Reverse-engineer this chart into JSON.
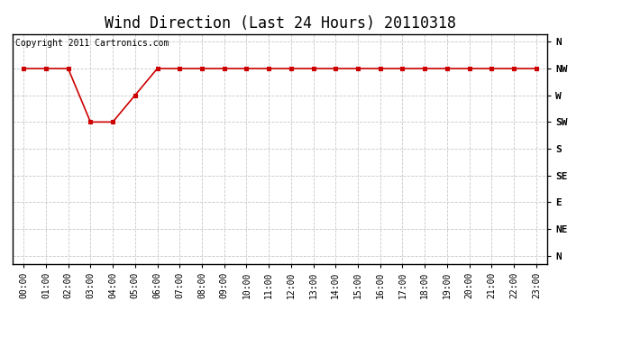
{
  "title": "Wind Direction (Last 24 Hours) 20110318",
  "copyright_text": "Copyright 2011 Cartronics.com",
  "background_color": "#ffffff",
  "plot_bg_color": "#ffffff",
  "grid_color": "#c8c8c8",
  "line_color": "#cc0000",
  "marker_color": "#cc0000",
  "x_labels": [
    "00:00",
    "01:00",
    "02:00",
    "03:00",
    "04:00",
    "05:00",
    "06:00",
    "07:00",
    "08:00",
    "09:00",
    "10:00",
    "11:00",
    "12:00",
    "13:00",
    "14:00",
    "15:00",
    "16:00",
    "17:00",
    "18:00",
    "19:00",
    "20:00",
    "21:00",
    "22:00",
    "23:00"
  ],
  "y_tick_labels": [
    "N",
    "NW",
    "W",
    "SW",
    "S",
    "SE",
    "E",
    "NE",
    "N"
  ],
  "y_tick_positions": [
    8,
    7,
    6,
    5,
    4,
    3,
    2,
    1,
    0
  ],
  "data_hours": [
    0,
    1,
    2,
    3,
    4,
    5,
    6,
    7,
    8,
    9,
    10,
    11,
    12,
    13,
    14,
    15,
    16,
    17,
    18,
    19,
    20,
    21,
    22,
    23
  ],
  "data_values": [
    7,
    7,
    7,
    5,
    5,
    6,
    7,
    7,
    7,
    7,
    7,
    7,
    7,
    7,
    7,
    7,
    7,
    7,
    7,
    7,
    7,
    7,
    7,
    7
  ],
  "title_fontsize": 12,
  "copyright_fontsize": 7,
  "tick_fontsize": 8,
  "xtick_fontsize": 7
}
